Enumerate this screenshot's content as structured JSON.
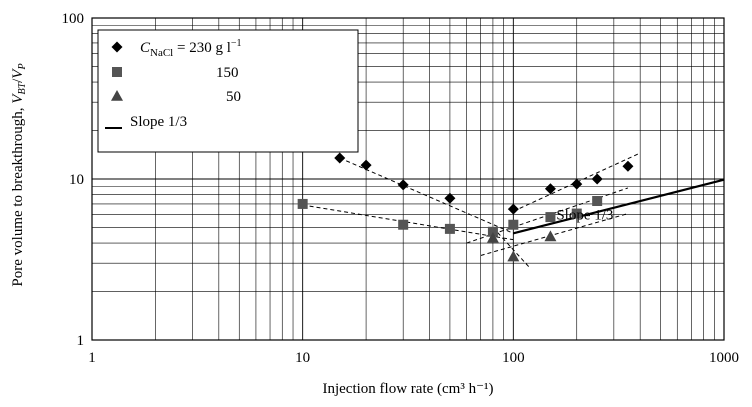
{
  "chart_data": {
    "type": "scatter",
    "x_scale": "log",
    "y_scale": "log",
    "xlim": [
      1,
      1000
    ],
    "ylim": [
      1,
      100
    ],
    "grid": true,
    "legend_placement": "top-left",
    "xlabel": "Injection flow rate (cm³ h⁻¹)",
    "ylabel_parts": {
      "main": "Pore volume to breakthrough, ",
      "v1": "V",
      "s1": "BT",
      "slash": "/",
      "v2": "V",
      "s2": "P"
    },
    "x_ticks": [
      {
        "value": 1,
        "label": "1"
      },
      {
        "value": 10,
        "label": "10"
      },
      {
        "value": 100,
        "label": "100"
      },
      {
        "value": 1000,
        "label": "1000"
      }
    ],
    "y_ticks": [
      {
        "value": 1,
        "label": "1"
      },
      {
        "value": 10,
        "label": "10"
      },
      {
        "value": 100,
        "label": "100"
      }
    ],
    "series": [
      {
        "name": "230",
        "legend_label": {
          "c": "C",
          "sub": "NaCl",
          "rest": " = 230 g l",
          "sup": "−1"
        },
        "marker": "diamond",
        "color": "#000000",
        "points": [
          {
            "x": 15,
            "y": 13.5
          },
          {
            "x": 20,
            "y": 12.2
          },
          {
            "x": 30,
            "y": 9.2
          },
          {
            "x": 50,
            "y": 7.6
          },
          {
            "x": 100,
            "y": 6.5
          },
          {
            "x": 150,
            "y": 8.7
          },
          {
            "x": 200,
            "y": 9.3
          },
          {
            "x": 250,
            "y": 10.0
          },
          {
            "x": 350,
            "y": 12.0
          }
        ]
      },
      {
        "name": "150",
        "legend_label": "150",
        "marker": "square",
        "color": "#555555",
        "points": [
          {
            "x": 10,
            "y": 7.0
          },
          {
            "x": 30,
            "y": 5.2
          },
          {
            "x": 50,
            "y": 4.9
          },
          {
            "x": 80,
            "y": 4.7
          },
          {
            "x": 100,
            "y": 5.2
          },
          {
            "x": 150,
            "y": 5.8
          },
          {
            "x": 200,
            "y": 6.1
          },
          {
            "x": 250,
            "y": 7.3
          }
        ]
      },
      {
        "name": "50",
        "legend_label": "50",
        "marker": "triangle",
        "color": "#444444",
        "points": [
          {
            "x": 80,
            "y": 4.3
          },
          {
            "x": 100,
            "y": 3.3
          },
          {
            "x": 150,
            "y": 4.4
          }
        ]
      }
    ],
    "slope_line": {
      "legend_label": "Slope 1/3",
      "annotation": "Slope 1/3",
      "annotation_at": {
        "x": 160,
        "y": 5.6
      },
      "from": {
        "x": 100,
        "y": 4.6
      },
      "to": {
        "x": 1000,
        "y": 9.9
      }
    },
    "trend_lines": [
      {
        "from": {
          "x": 15,
          "y": 13.5
        },
        "to": {
          "x": 100,
          "y": 4.6
        }
      },
      {
        "from": {
          "x": 100,
          "y": 6.3
        },
        "to": {
          "x": 400,
          "y": 14.5
        }
      },
      {
        "from": {
          "x": 10,
          "y": 6.9
        },
        "to": {
          "x": 100,
          "y": 4.2
        }
      },
      {
        "from": {
          "x": 60,
          "y": 4.0
        },
        "to": {
          "x": 350,
          "y": 8.8
        }
      },
      {
        "from": {
          "x": 80,
          "y": 5.0
        },
        "to": {
          "x": 120,
          "y": 2.8
        }
      },
      {
        "from": {
          "x": 70,
          "y": 3.35
        },
        "to": {
          "x": 350,
          "y": 6.1
        }
      }
    ]
  }
}
